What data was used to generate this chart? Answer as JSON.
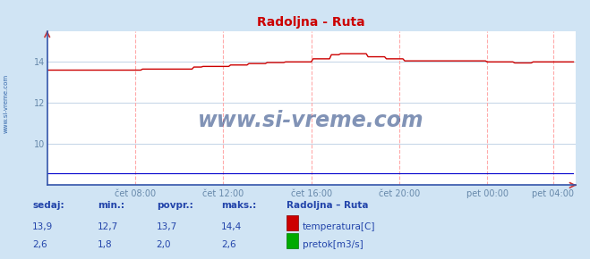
{
  "title": "Radoljna - Ruta",
  "title_color": "#cc0000",
  "bg_color": "#d0e4f4",
  "plot_bg_color": "#ffffff",
  "vgrid_color": "#ffaaaa",
  "hgrid_color": "#c8d8e8",
  "axis_line_color": "#3355aa",
  "tick_label_color": "#6688aa",
  "watermark": "www.si-vreme.com",
  "watermark_color": "#1a3a7a",
  "watermark_alpha": 0.55,
  "sidebar_text": "www.si-vreme.com",
  "sidebar_color": "#3366aa",
  "xlim_start": 0,
  "xlim_end": 288,
  "ylim": [
    8.0,
    15.5
  ],
  "xtick_positions": [
    48,
    96,
    144,
    192,
    240,
    276
  ],
  "xtick_labels": [
    "čet 08:00",
    "čet 12:00",
    "čet 16:00",
    "čet 20:00",
    "pet 00:00",
    "pet 04:00"
  ],
  "ytick_positions": [
    10,
    12,
    14
  ],
  "ytick_labels": [
    "10",
    "12",
    "14"
  ],
  "temp_color": "#cc0000",
  "flow_color": "#00aa00",
  "height_color": "#0000cc",
  "n_points": 288,
  "stats_header_color": "#2244aa",
  "stats_value_color": "#2244aa",
  "legend_title": "Radoljna – Ruta",
  "legend_title_color": "#2244aa"
}
